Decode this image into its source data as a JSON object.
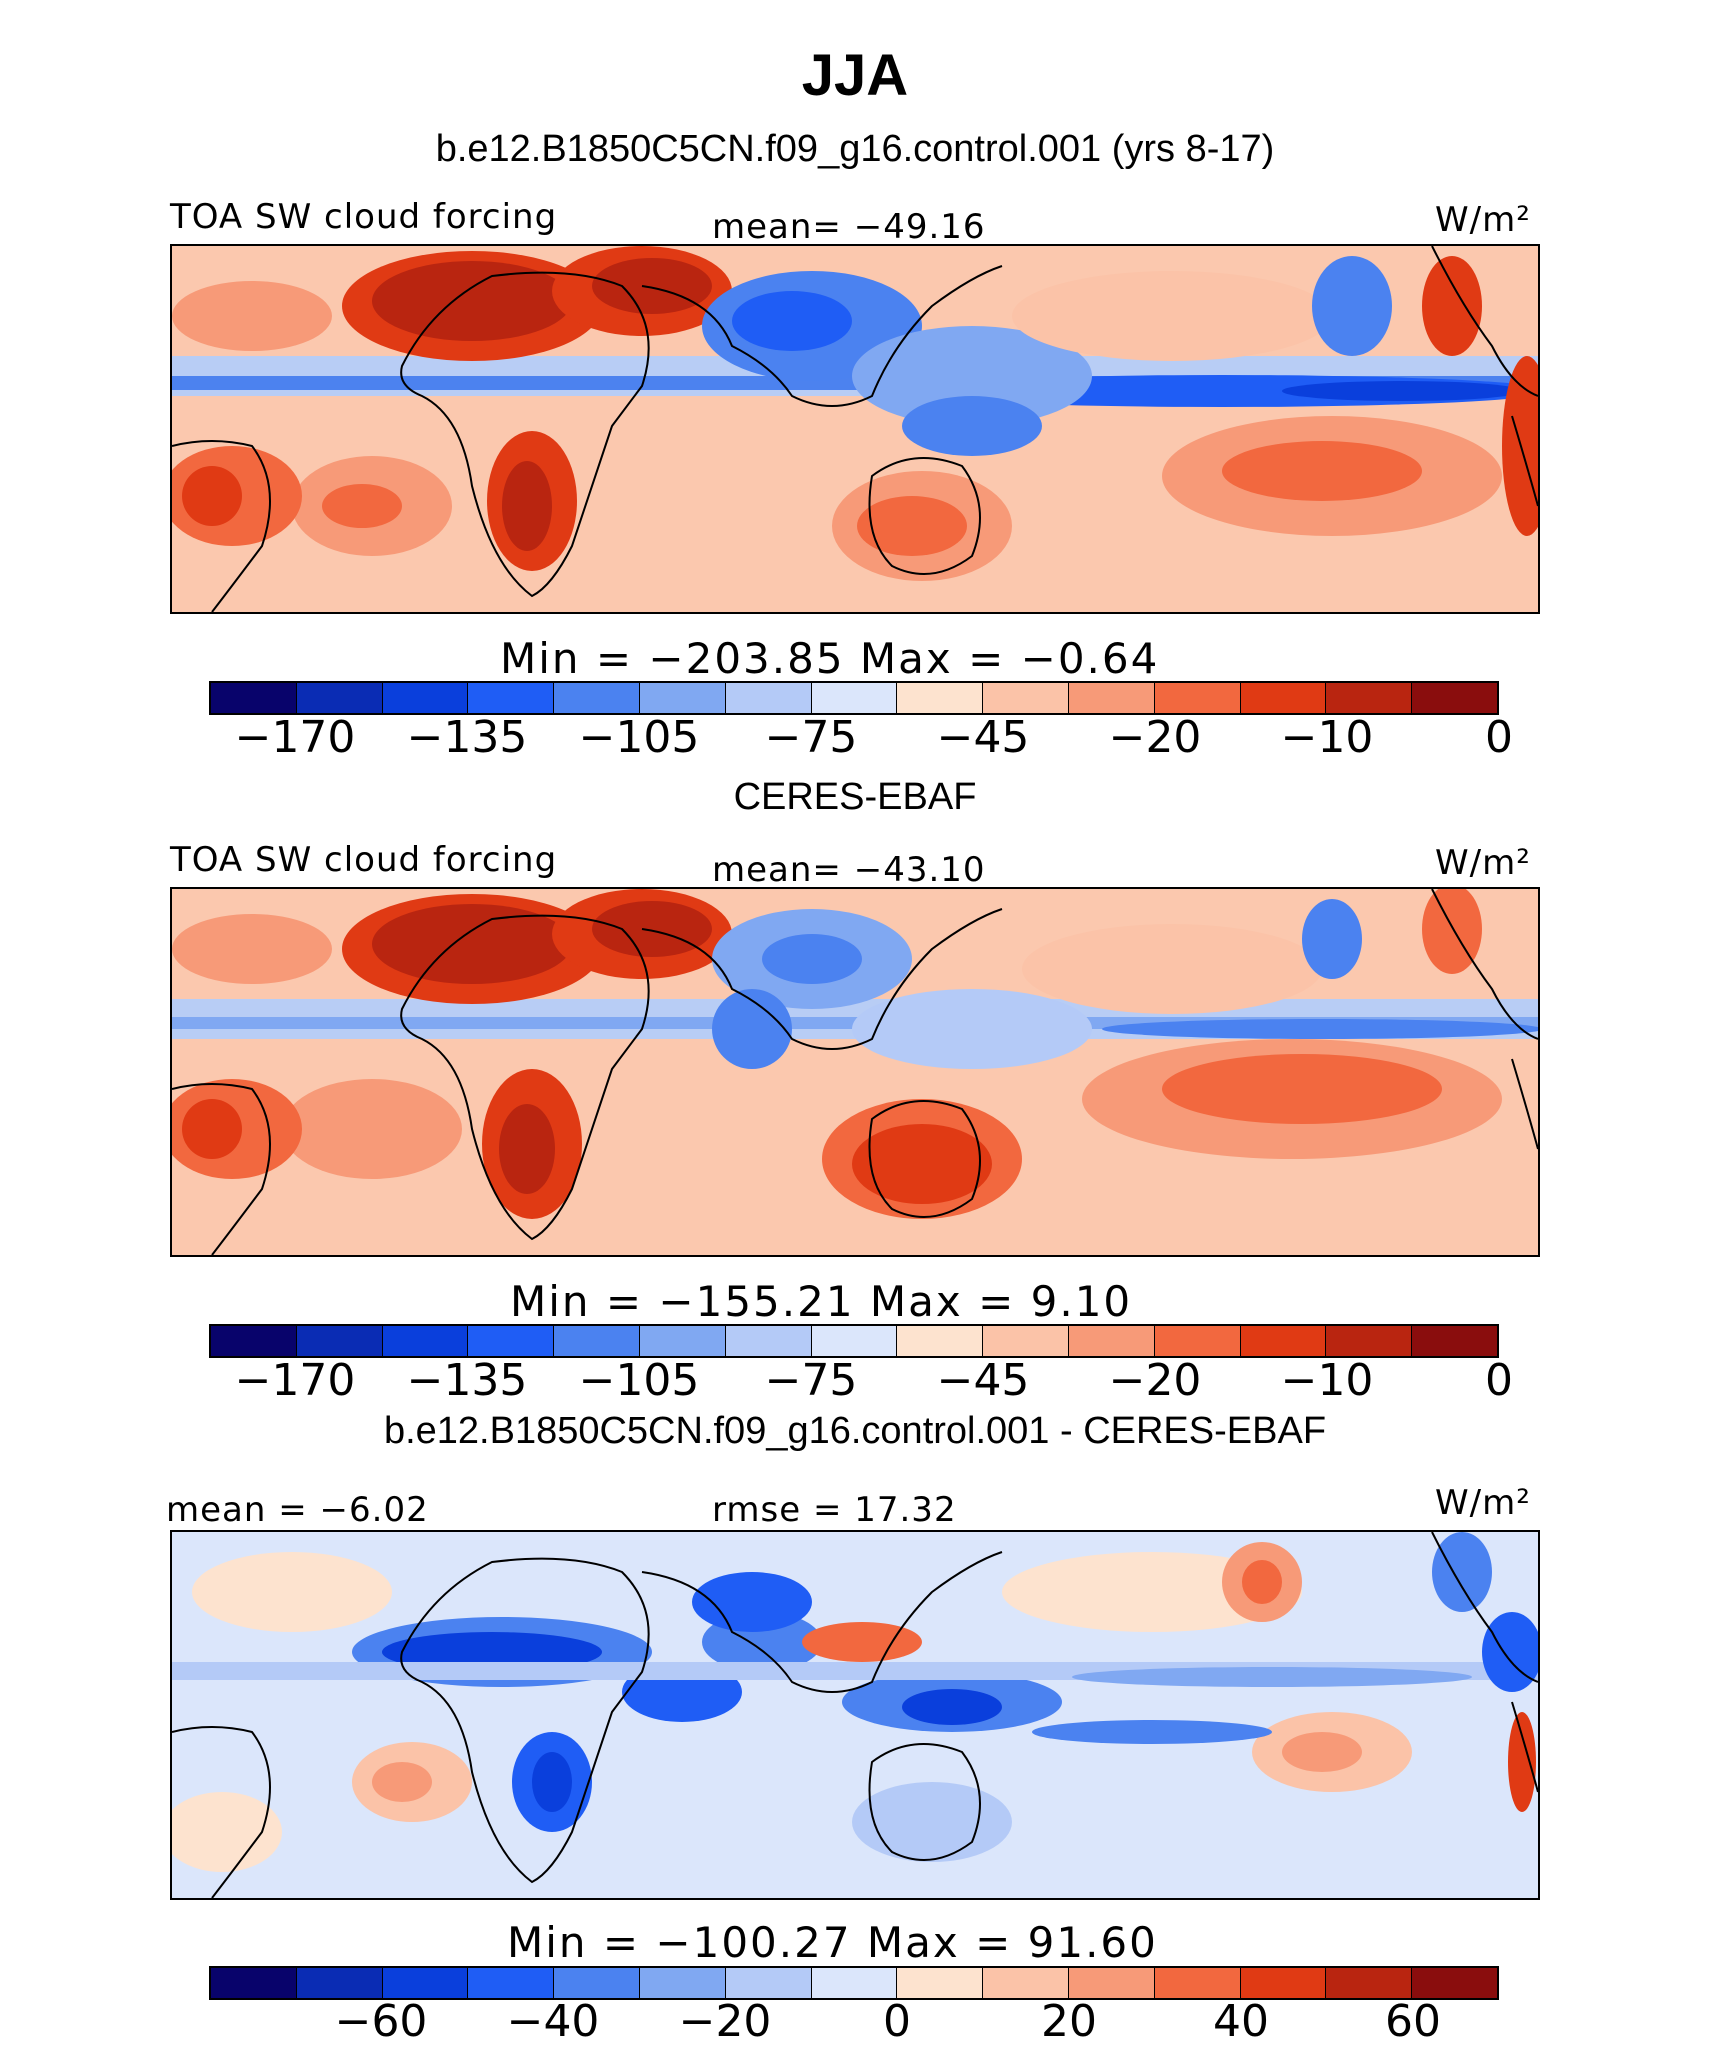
{
  "title": "JJA",
  "panels": [
    {
      "heading": "b.e12.B1850C5CN.f09_g16.control.001 (yrs 8-17)",
      "left_label": "TOA SW cloud forcing",
      "center_label": "mean= −49.16",
      "units": "W/m²",
      "stats": "Min  =  −203.85  Max  =   −0.64",
      "colorbar_ticks": [
        "−170",
        "−135",
        "−105",
        "−75",
        "−45",
        "−20",
        "−10",
        "0"
      ]
    },
    {
      "heading": "CERES-EBAF",
      "left_label": "TOA SW cloud forcing",
      "center_label": "mean= −43.10",
      "units": "W/m²",
      "stats": "Min  =  −155.21  Max  =    9.10",
      "colorbar_ticks": [
        "−170",
        "−135",
        "−105",
        "−75",
        "−45",
        "−20",
        "−10",
        "0"
      ]
    },
    {
      "heading": "b.e12.B1850C5CN.f09_g16.control.001 - CERES-EBAF",
      "left_label": "mean =   −6.02",
      "center_label": "rmse =   17.32",
      "units": "W/m²",
      "stats": "Min  =  −100.27  Max  =   91.60",
      "colorbar_ticks": [
        "−60",
        "−40",
        "−20",
        "0",
        "20",
        "40",
        "60"
      ]
    }
  ],
  "colorbar_colors": [
    "#08036b",
    "#0a2cb4",
    "#0a3fdc",
    "#1f5df5",
    "#4b82f0",
    "#80a8f2",
    "#b4caf7",
    "#dbe6fb",
    "#fde3cf",
    "#fbc3a8",
    "#f79a78",
    "#f2683f",
    "#e03a14",
    "#b92510",
    "#8a0d0d"
  ],
  "chart_data": {
    "type": "heatmap",
    "title": "JJA",
    "maps": [
      {
        "name": "b.e12.B1850C5CN.f09_g16.control.001 (yrs 8-17)",
        "variable": "TOA SW cloud forcing",
        "units": "W/m2",
        "mean": -49.16,
        "min": -203.85,
        "max": -0.64,
        "levels": [
          -170,
          -135,
          -105,
          -75,
          -45,
          -20,
          -10,
          0
        ]
      },
      {
        "name": "CERES-EBAF",
        "variable": "TOA SW cloud forcing",
        "units": "W/m2",
        "mean": -43.1,
        "min": -155.21,
        "max": 9.1,
        "levels": [
          -170,
          -135,
          -105,
          -75,
          -45,
          -20,
          -10,
          0
        ]
      },
      {
        "name": "b.e12.B1850C5CN.f09_g16.control.001 - CERES-EBAF",
        "units": "W/m2",
        "mean": -6.02,
        "rmse": 17.32,
        "min": -100.27,
        "max": 91.6,
        "levels": [
          -60,
          -40,
          -20,
          0,
          20,
          40,
          60
        ]
      }
    ]
  }
}
